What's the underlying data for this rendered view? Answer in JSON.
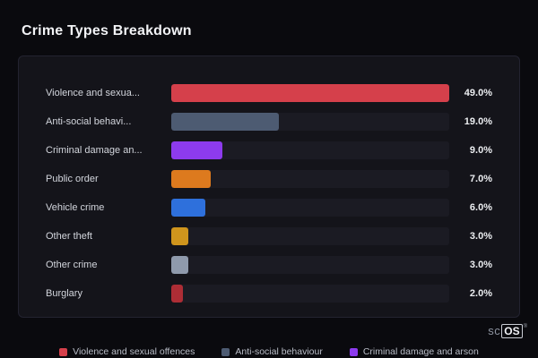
{
  "page": {
    "title": "Crime Types Breakdown"
  },
  "chart_data": {
    "type": "bar",
    "orientation": "horizontal",
    "title": "Crime Types Breakdown",
    "max_value": 49.0,
    "categories": [
      "Violence and sexua...",
      "Anti-social behavi...",
      "Criminal damage an...",
      "Public order",
      "Vehicle crime",
      "Other theft",
      "Other crime",
      "Burglary"
    ],
    "values": [
      49.0,
      19.0,
      9.0,
      7.0,
      6.0,
      3.0,
      3.0,
      2.0
    ],
    "value_labels": [
      "49.0%",
      "19.0%",
      "9.0%",
      "7.0%",
      "6.0%",
      "3.0%",
      "3.0%",
      "2.0%"
    ],
    "bar_colors": [
      "#d5404b",
      "#4d5b72",
      "#8d3bee",
      "#dd7a1e",
      "#2e70dc",
      "#cf951d",
      "#8f9aac",
      "#ad2d35"
    ],
    "track_color": "#1b1b23",
    "legend_position": "bottom"
  },
  "legend": {
    "items": [
      {
        "label": "Violence and sexual offences",
        "color": "#d5404b"
      },
      {
        "label": "Anti-social behaviour",
        "color": "#4d5b72"
      },
      {
        "label": "Criminal damage and arson",
        "color": "#8d3bee"
      }
    ]
  },
  "watermark": {
    "prefix": "sc",
    "suffix": "OS",
    "reg": "®"
  }
}
